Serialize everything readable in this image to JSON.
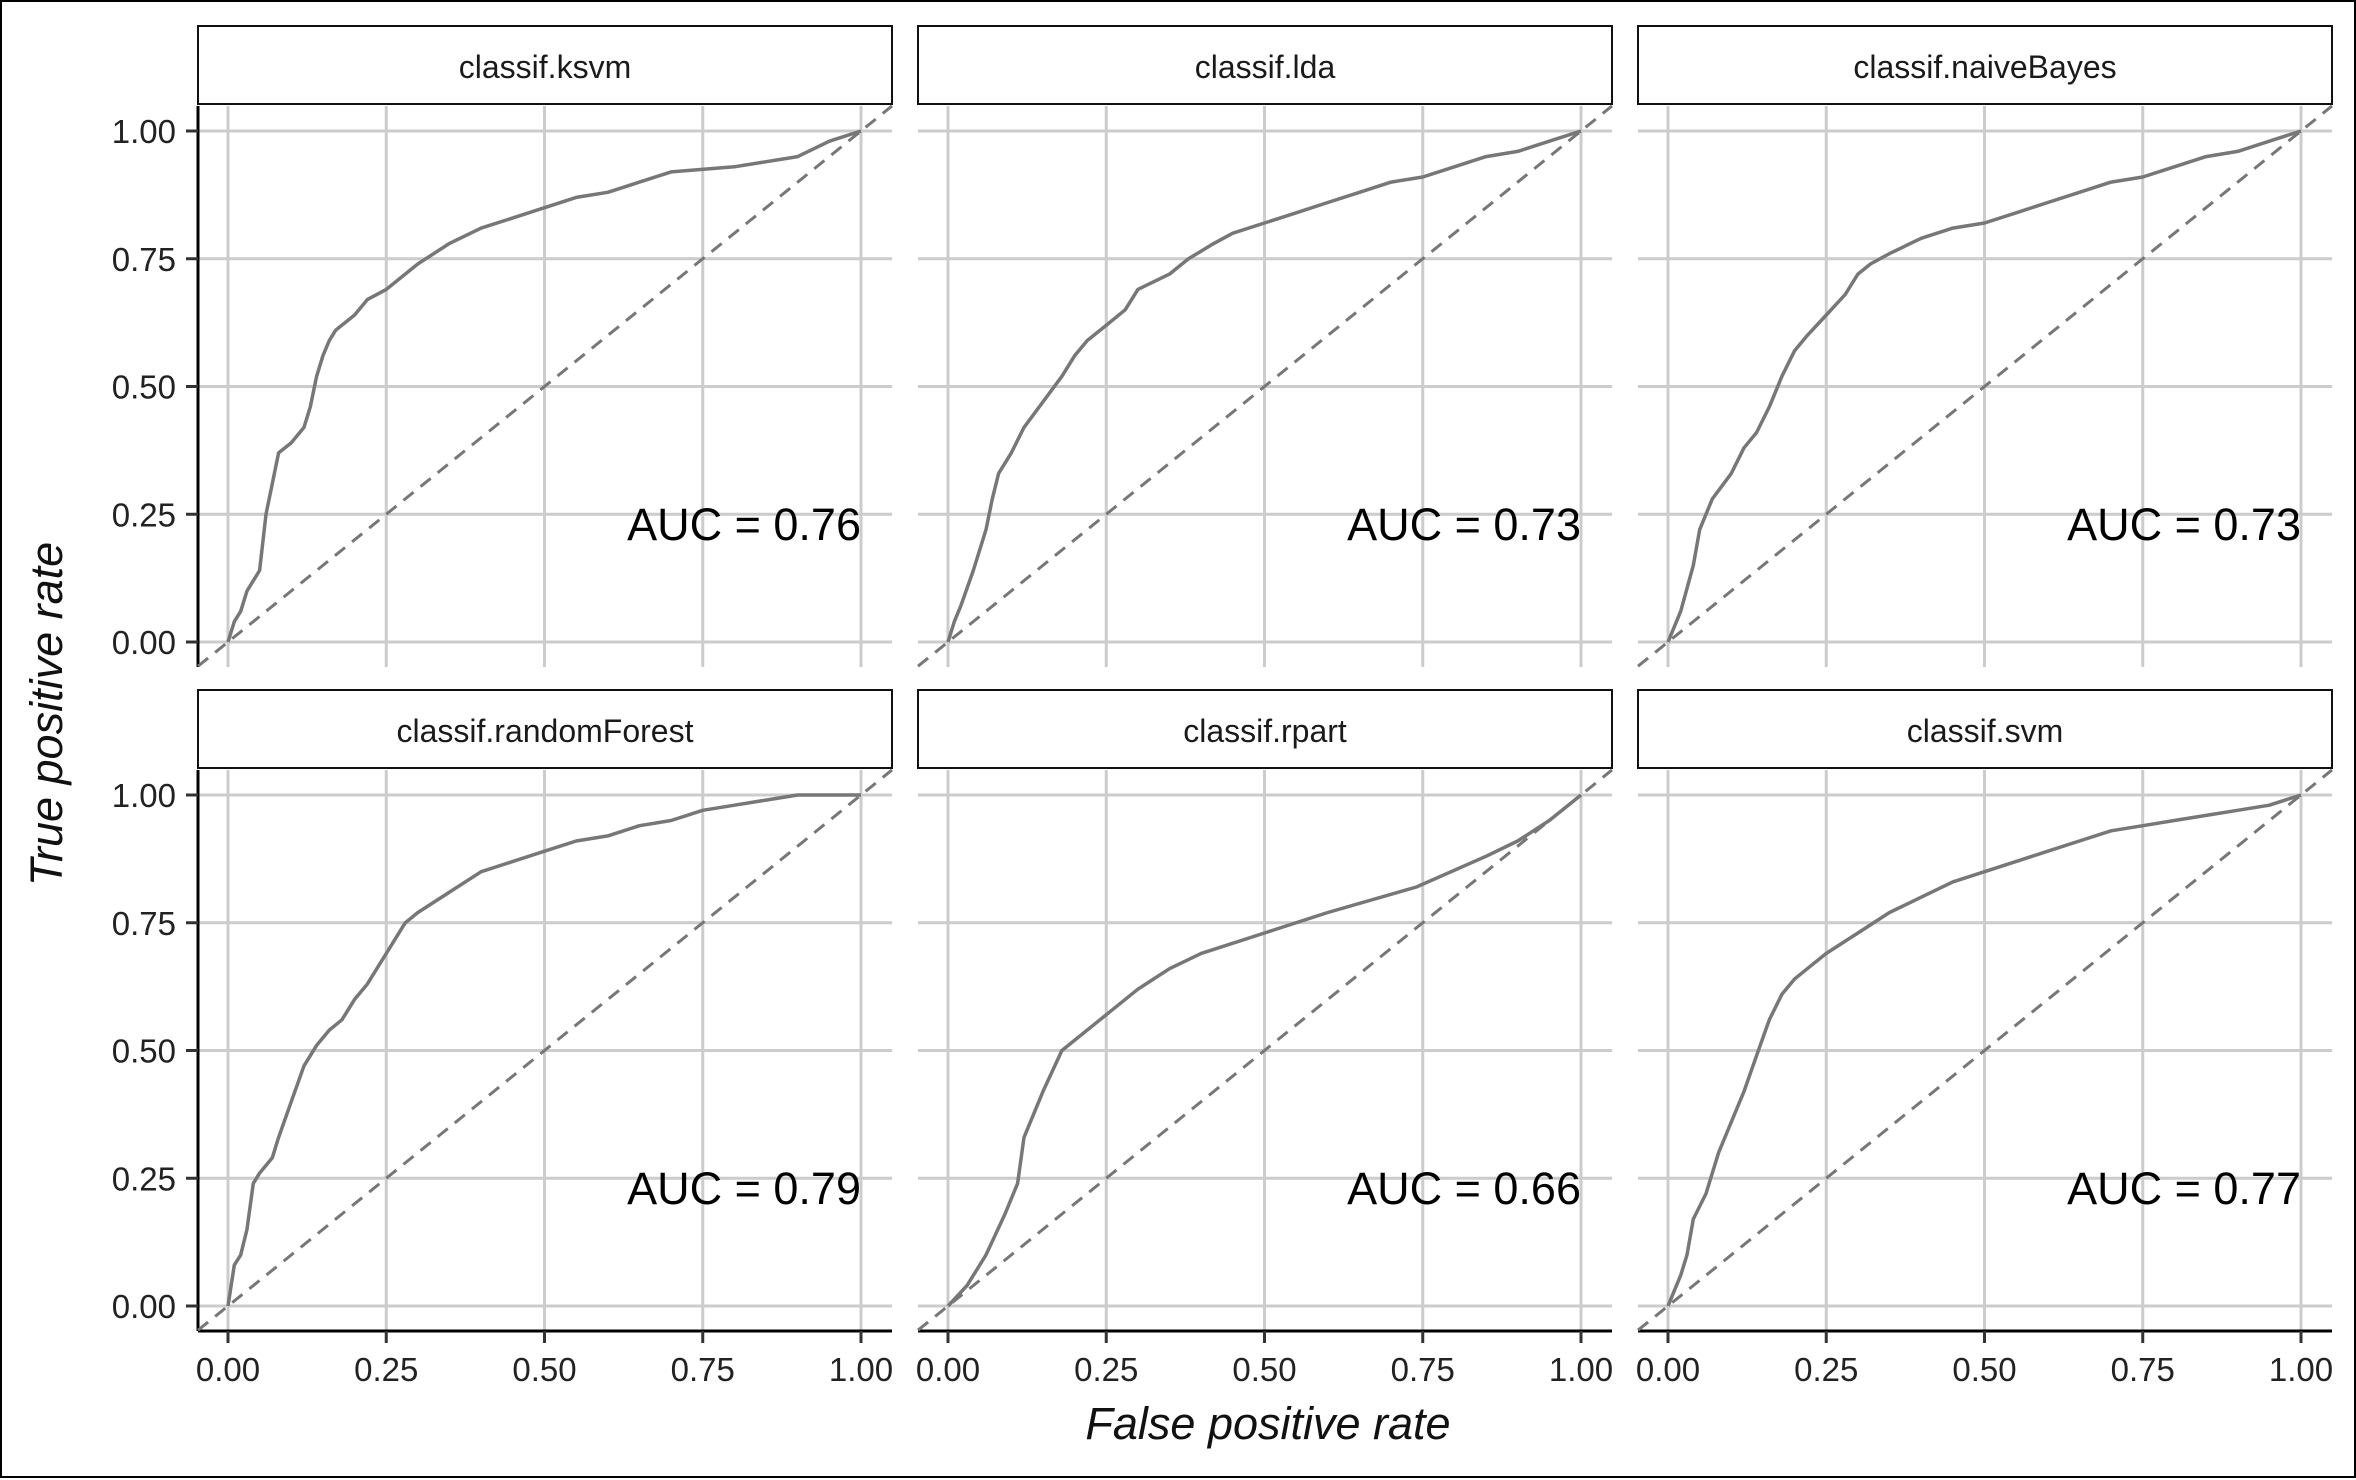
{
  "chart_data": {
    "type": "line",
    "xlabel": "False positive rate",
    "ylabel": "True positive rate",
    "xlim": [
      0,
      1
    ],
    "ylim": [
      0,
      1
    ],
    "x_ticks": [
      "0.00",
      "0.25",
      "0.50",
      "0.75",
      "1.00"
    ],
    "y_ticks": [
      "0.00",
      "0.25",
      "0.50",
      "0.75",
      "1.00"
    ],
    "grid": true,
    "colors": {
      "curve": "#777777",
      "reference": "#777777",
      "grid": "#cccccc",
      "axis": "#000000"
    },
    "panels": [
      {
        "label": "classif.ksvm",
        "auc_label": "AUC =  0.76",
        "auc": 0.76,
        "x": [
          0,
          0.01,
          0.02,
          0.03,
          0.05,
          0.06,
          0.07,
          0.08,
          0.1,
          0.12,
          0.13,
          0.14,
          0.15,
          0.16,
          0.17,
          0.2,
          0.22,
          0.25,
          0.3,
          0.35,
          0.4,
          0.45,
          0.5,
          0.55,
          0.6,
          0.65,
          0.7,
          0.8,
          0.9,
          0.95,
          1
        ],
        "y": [
          0,
          0.04,
          0.06,
          0.1,
          0.14,
          0.25,
          0.31,
          0.37,
          0.39,
          0.42,
          0.46,
          0.52,
          0.56,
          0.59,
          0.61,
          0.64,
          0.67,
          0.69,
          0.74,
          0.78,
          0.81,
          0.83,
          0.85,
          0.87,
          0.88,
          0.9,
          0.92,
          0.93,
          0.95,
          0.98,
          1
        ]
      },
      {
        "label": "classif.lda",
        "auc_label": "AUC =  0.73",
        "auc": 0.73,
        "x": [
          0,
          0.01,
          0.02,
          0.04,
          0.06,
          0.07,
          0.08,
          0.1,
          0.12,
          0.15,
          0.18,
          0.2,
          0.22,
          0.25,
          0.28,
          0.3,
          0.35,
          0.38,
          0.42,
          0.45,
          0.5,
          0.55,
          0.6,
          0.65,
          0.7,
          0.75,
          0.8,
          0.85,
          0.9,
          0.95,
          1
        ],
        "y": [
          0,
          0.04,
          0.07,
          0.14,
          0.22,
          0.28,
          0.33,
          0.37,
          0.42,
          0.47,
          0.52,
          0.56,
          0.59,
          0.62,
          0.65,
          0.69,
          0.72,
          0.75,
          0.78,
          0.8,
          0.82,
          0.84,
          0.86,
          0.88,
          0.9,
          0.91,
          0.93,
          0.95,
          0.96,
          0.98,
          1
        ]
      },
      {
        "label": "classif.naiveBayes",
        "auc_label": "AUC =  0.73",
        "auc": 0.73,
        "x": [
          0,
          0.02,
          0.04,
          0.05,
          0.07,
          0.1,
          0.12,
          0.14,
          0.16,
          0.18,
          0.2,
          0.22,
          0.25,
          0.28,
          0.3,
          0.32,
          0.35,
          0.4,
          0.45,
          0.5,
          0.55,
          0.6,
          0.65,
          0.7,
          0.75,
          0.8,
          0.85,
          0.9,
          0.95,
          1
        ],
        "y": [
          0,
          0.06,
          0.15,
          0.22,
          0.28,
          0.33,
          0.38,
          0.41,
          0.46,
          0.52,
          0.57,
          0.6,
          0.64,
          0.68,
          0.72,
          0.74,
          0.76,
          0.79,
          0.81,
          0.82,
          0.84,
          0.86,
          0.88,
          0.9,
          0.91,
          0.93,
          0.95,
          0.96,
          0.98,
          1
        ]
      },
      {
        "label": "classif.randomForest",
        "auc_label": "AUC =  0.79",
        "auc": 0.79,
        "x": [
          0,
          0.01,
          0.02,
          0.03,
          0.04,
          0.05,
          0.07,
          0.08,
          0.1,
          0.12,
          0.14,
          0.16,
          0.18,
          0.2,
          0.22,
          0.25,
          0.28,
          0.3,
          0.35,
          0.4,
          0.45,
          0.5,
          0.55,
          0.6,
          0.65,
          0.7,
          0.75,
          0.8,
          0.85,
          0.9,
          1
        ],
        "y": [
          0,
          0.08,
          0.1,
          0.15,
          0.24,
          0.26,
          0.29,
          0.33,
          0.4,
          0.47,
          0.51,
          0.54,
          0.56,
          0.6,
          0.63,
          0.69,
          0.75,
          0.77,
          0.81,
          0.85,
          0.87,
          0.89,
          0.91,
          0.92,
          0.94,
          0.95,
          0.97,
          0.98,
          0.99,
          1,
          1
        ]
      },
      {
        "label": "classif.rpart",
        "auc_label": "AUC =  0.66",
        "auc": 0.66,
        "x": [
          0,
          0.03,
          0.06,
          0.09,
          0.11,
          0.12,
          0.15,
          0.18,
          0.2,
          0.25,
          0.3,
          0.35,
          0.4,
          0.5,
          0.6,
          0.74,
          0.85,
          0.9,
          0.95,
          1
        ],
        "y": [
          0,
          0.04,
          0.1,
          0.18,
          0.24,
          0.33,
          0.42,
          0.5,
          0.52,
          0.57,
          0.62,
          0.66,
          0.69,
          0.73,
          0.77,
          0.82,
          0.88,
          0.91,
          0.95,
          1
        ]
      },
      {
        "label": "classif.svm",
        "auc_label": "AUC =  0.77",
        "auc": 0.77,
        "x": [
          0,
          0.01,
          0.02,
          0.03,
          0.04,
          0.06,
          0.07,
          0.08,
          0.1,
          0.12,
          0.14,
          0.16,
          0.18,
          0.2,
          0.22,
          0.25,
          0.3,
          0.35,
          0.4,
          0.45,
          0.5,
          0.55,
          0.6,
          0.65,
          0.7,
          0.75,
          0.8,
          0.85,
          0.9,
          0.95,
          1
        ],
        "y": [
          0,
          0.03,
          0.06,
          0.1,
          0.17,
          0.22,
          0.26,
          0.3,
          0.36,
          0.42,
          0.49,
          0.56,
          0.61,
          0.64,
          0.66,
          0.69,
          0.73,
          0.77,
          0.8,
          0.83,
          0.85,
          0.87,
          0.89,
          0.91,
          0.93,
          0.94,
          0.95,
          0.96,
          0.97,
          0.98,
          1
        ]
      }
    ]
  }
}
